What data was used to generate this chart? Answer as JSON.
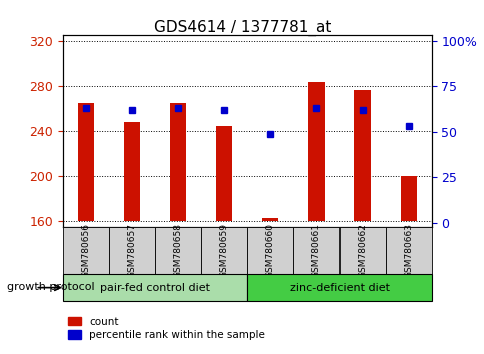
{
  "title": "GDS4614 / 1377781_at",
  "samples": [
    "GSM780656",
    "GSM780657",
    "GSM780658",
    "GSM780659",
    "GSM780660",
    "GSM780661",
    "GSM780662",
    "GSM780663"
  ],
  "count_values": [
    265,
    248,
    265,
    244,
    163,
    284,
    276,
    200
  ],
  "percentile_values": [
    63,
    62,
    63,
    62,
    49,
    63,
    62,
    53
  ],
  "ylim_left": [
    155,
    325
  ],
  "ylim_right": [
    -2,
    103
  ],
  "yticks_left": [
    160,
    200,
    240,
    280,
    320
  ],
  "yticks_right": [
    0,
    25,
    50,
    75,
    100
  ],
  "ytick_labels_right": [
    "0",
    "25",
    "50",
    "75",
    "100%"
  ],
  "bar_color": "#cc1100",
  "marker_color": "#0000cc",
  "baseline": 160,
  "group1_label": "pair-fed control diet",
  "group2_label": "zinc-deficient diet",
  "growth_protocol_label": "growth protocol",
  "group1_color": "#aaddaa",
  "group2_color": "#44cc44",
  "legend_count_label": "count",
  "legend_percentile_label": "percentile rank within the sample",
  "tick_label_color_left": "#cc2200",
  "tick_label_color_right": "#0000cc",
  "label_bg_color": "#d0d0d0"
}
